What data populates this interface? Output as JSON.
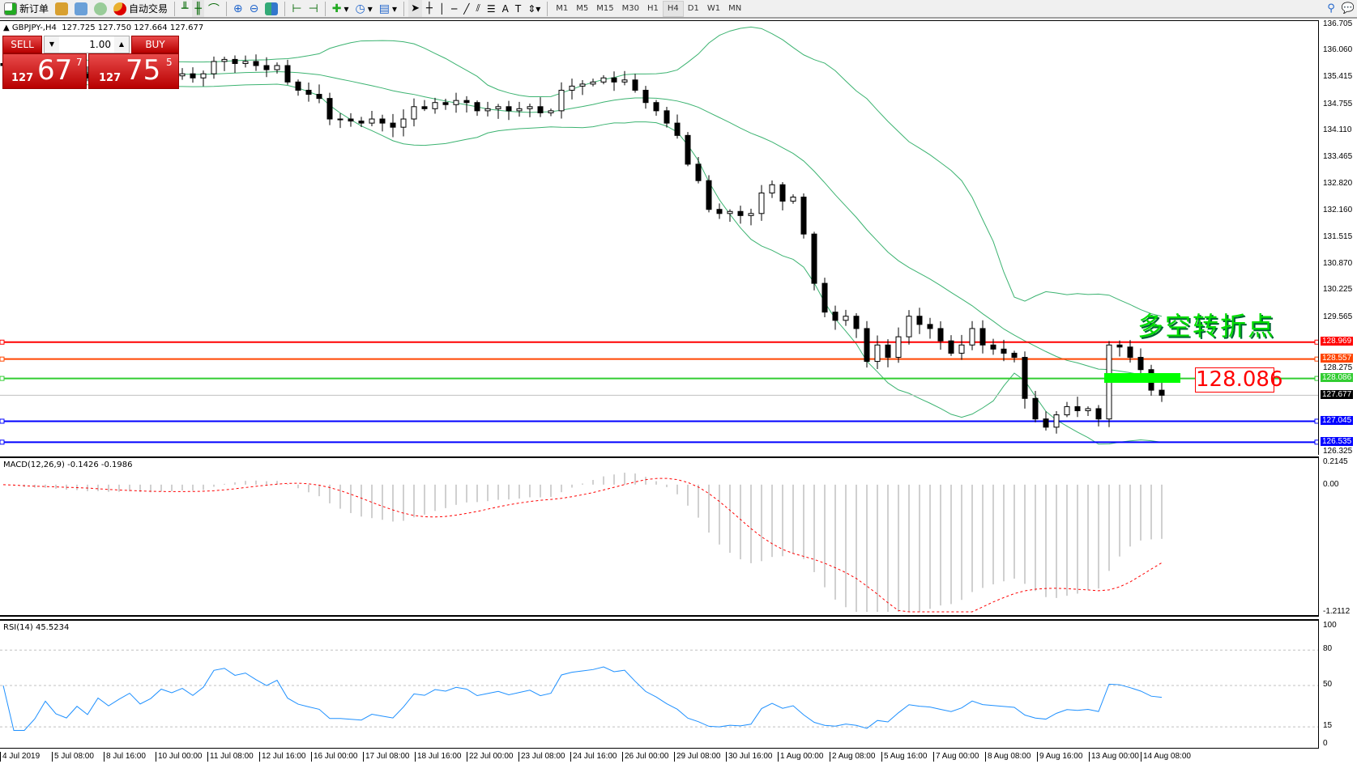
{
  "toolbar": {
    "new_order": "新订单",
    "auto_trading": "自动交易",
    "timeframes": [
      "M1",
      "M5",
      "M15",
      "M30",
      "H1",
      "H4",
      "D1",
      "W1",
      "MN"
    ],
    "active_timeframe": "H4"
  },
  "chart": {
    "title": "GBPJPY-,H4",
    "ohlc": "127.725 127.750 127.664 127.677",
    "symbol": "GBPJPY",
    "timeframe": "H4"
  },
  "trade_panel": {
    "sell_label": "SELL",
    "buy_label": "BUY",
    "lot": "1.00",
    "sell_prefix": "127",
    "sell_big": "67",
    "sell_sup": "7",
    "buy_prefix": "127",
    "buy_big": "75",
    "buy_sup": "5"
  },
  "annotation": {
    "text": "多空转折点",
    "level_label": "128.086",
    "color": "#00dd00"
  },
  "levels": [
    {
      "price": 128.969,
      "label": "128.969",
      "color": "#ff0000"
    },
    {
      "price": 128.557,
      "label": "128.557",
      "color": "#ff4500"
    },
    {
      "price": 128.086,
      "label": "128.086",
      "color": "#32cd32"
    },
    {
      "price": 127.045,
      "label": "127.045",
      "color": "#0000ff"
    },
    {
      "price": 126.535,
      "label": "126.535",
      "color": "#0000ff"
    }
  ],
  "bid": {
    "price": 127.677,
    "label": "127.677"
  },
  "chart_data": {
    "type": "candlestick",
    "price_ticks": [
      "136.705",
      "136.060",
      "135.415",
      "134.755",
      "134.110",
      "133.465",
      "132.820",
      "132.160",
      "131.515",
      "130.870",
      "130.225",
      "129.565",
      "128.275",
      "126.325"
    ],
    "ylim": [
      126.325,
      136.705
    ],
    "closes": [
      135.7,
      135.6,
      135.5,
      135.55,
      135.6,
      135.5,
      135.45,
      135.5,
      135.4,
      135.5,
      135.4,
      135.45,
      135.5,
      135.35,
      135.4,
      135.5,
      135.45,
      135.5,
      135.4,
      135.5,
      135.8,
      135.85,
      135.75,
      135.8,
      135.7,
      135.6,
      135.7,
      135.3,
      135.1,
      135.0,
      134.9,
      134.4,
      134.4,
      134.35,
      134.3,
      134.4,
      134.3,
      134.2,
      134.4,
      134.7,
      134.65,
      134.8,
      134.75,
      134.85,
      134.8,
      134.6,
      134.65,
      134.7,
      134.6,
      134.65,
      134.7,
      134.55,
      134.6,
      135.1,
      135.2,
      135.25,
      135.3,
      135.4,
      135.3,
      135.35,
      135.1,
      134.8,
      134.6,
      134.3,
      134.0,
      133.3,
      132.9,
      132.2,
      132.1,
      132.15,
      132.05,
      132.1,
      132.6,
      132.8,
      132.4,
      132.5,
      131.6,
      130.4,
      129.7,
      129.5,
      129.6,
      129.3,
      128.5,
      128.9,
      128.6,
      129.1,
      129.6,
      129.4,
      129.3,
      129.0,
      128.7,
      128.9,
      129.3,
      128.9,
      128.8,
      128.7,
      128.6,
      127.6,
      127.1,
      126.9,
      127.2,
      127.4,
      127.3,
      127.35,
      127.1,
      128.9,
      128.85,
      128.6,
      128.3,
      127.8,
      127.677
    ],
    "indicators": [
      "Bollinger Bands"
    ],
    "time_labels": [
      "4 Jul 2019",
      "5 Jul 08:00",
      "8 Jul 16:00",
      "10 Jul 00:00",
      "11 Jul 08:00",
      "12 Jul 16:00",
      "16 Jul 00:00",
      "17 Jul 08:00",
      "18 Jul 16:00",
      "22 Jul 00:00",
      "23 Jul 08:00",
      "24 Jul 16:00",
      "26 Jul 00:00",
      "29 Jul 08:00",
      "30 Jul 16:00",
      "1 Aug 00:00",
      "2 Aug 08:00",
      "5 Aug 16:00",
      "7 Aug 00:00",
      "8 Aug 08:00",
      "9 Aug 16:00",
      "13 Aug 00:00",
      "14 Aug 08:00"
    ]
  },
  "macd": {
    "title": "MACD(12,26,9) -0.1426 -0.1986",
    "ticks": [
      "0.2145",
      "0.00",
      "-1.2112"
    ],
    "ylim": [
      -1.2112,
      0.2145
    ]
  },
  "rsi": {
    "title": "RSI(14) 45.5234",
    "ticks": [
      "100",
      "80",
      "50",
      "15",
      "0"
    ],
    "levels": [
      80,
      50,
      15
    ]
  }
}
